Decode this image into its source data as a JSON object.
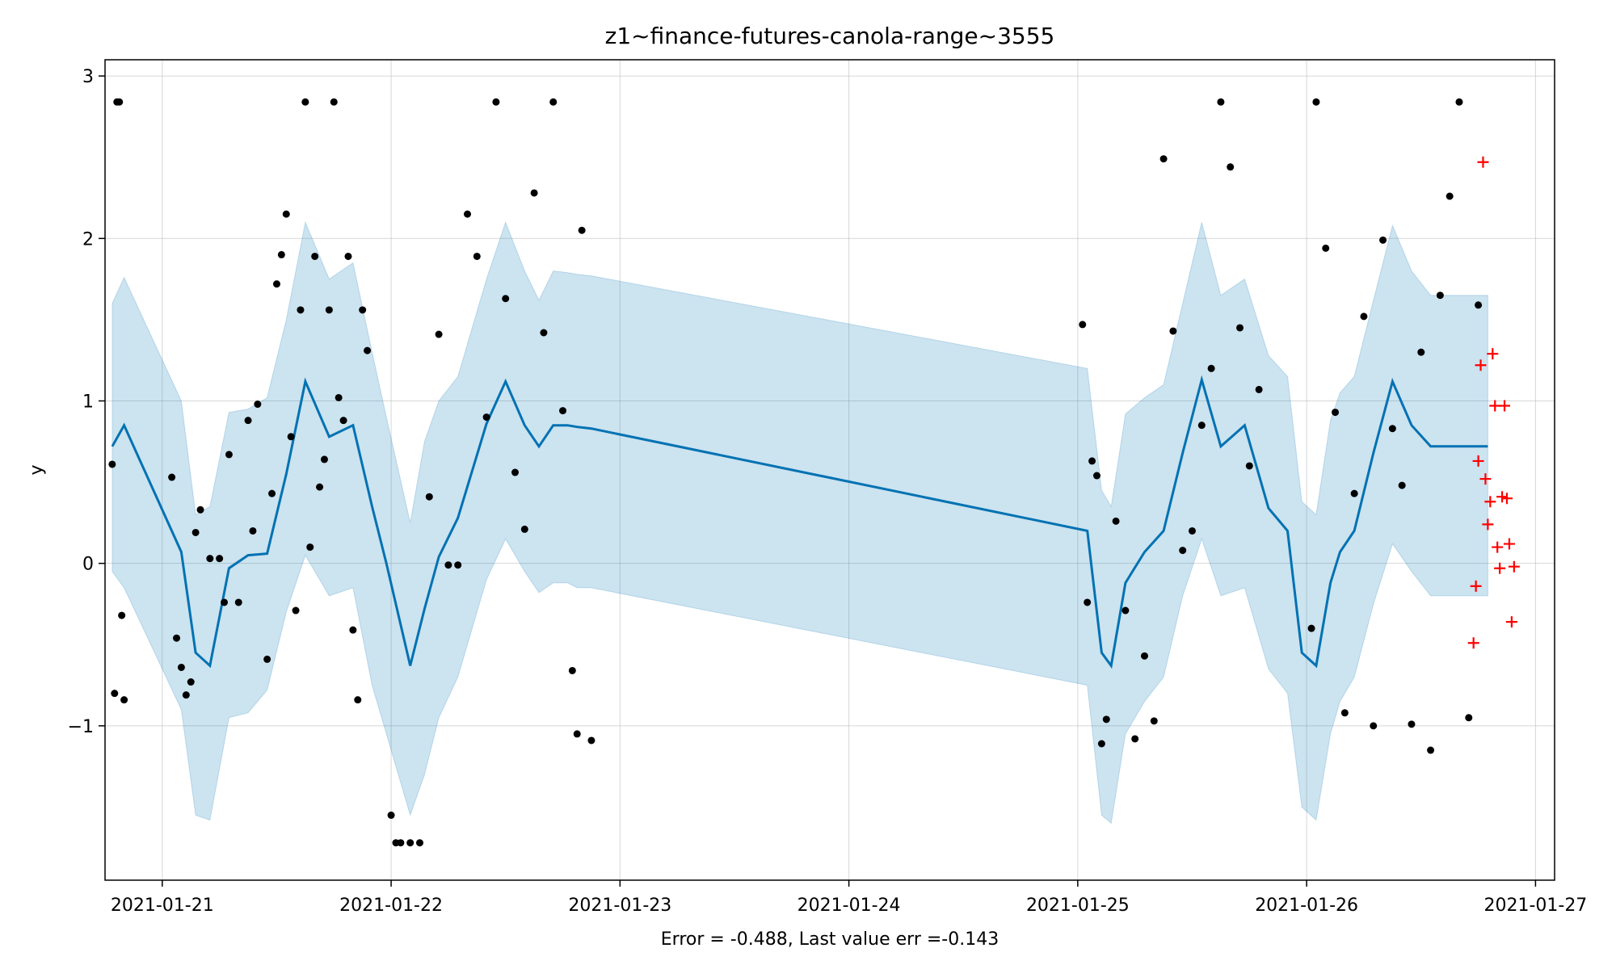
{
  "chart_data": {
    "type": "scatter",
    "title": "z1~finance-futures-canola-range~3555",
    "xlabel": "",
    "ylabel": "y",
    "footer": "Error = -0.488, Last value err =-0.143",
    "grid": true,
    "xlim": [
      "2021-01-20T18:00",
      "2021-01-27T02:00"
    ],
    "ylim": [
      -1.95,
      3.1
    ],
    "xticks": [
      "2021-01-21",
      "2021-01-22",
      "2021-01-23",
      "2021-01-24",
      "2021-01-25",
      "2021-01-26",
      "2021-01-27"
    ],
    "yticks": [
      -1,
      0,
      1,
      2,
      3
    ],
    "ytick_labels": [
      "−1",
      "0",
      "1",
      "2",
      "3"
    ],
    "colors": {
      "forecast_line": "#0072b2",
      "interval_fill": "#0072b2",
      "observed": "#000000",
      "holdout": "#ff0000"
    },
    "forecast": {
      "x": [
        "2021-01-20T18:45",
        "2021-01-20T20:00",
        "2021-01-21T02:00",
        "2021-01-21T03:30",
        "2021-01-21T05:00",
        "2021-01-21T07:00",
        "2021-01-21T09:00",
        "2021-01-21T11:00",
        "2021-01-21T13:00",
        "2021-01-21T15:00",
        "2021-01-21T17:30",
        "2021-01-21T20:00",
        "2021-01-21T22:00",
        "2021-01-21T23:30",
        "2021-01-22T02:00",
        "2021-01-22T03:30",
        "2021-01-22T05:00",
        "2021-01-22T07:00",
        "2021-01-22T10:00",
        "2021-01-22T12:00",
        "2021-01-22T14:00",
        "2021-01-22T15:30",
        "2021-01-22T17:00",
        "2021-01-22T18:30",
        "2021-01-22T19:30",
        "2021-01-22T21:00",
        "2021-01-25T01:00",
        "2021-01-25T02:30",
        "2021-01-25T03:30",
        "2021-01-25T05:00",
        "2021-01-25T07:00",
        "2021-01-25T09:00",
        "2021-01-25T11:00",
        "2021-01-25T13:00",
        "2021-01-25T15:00",
        "2021-01-25T17:30",
        "2021-01-25T20:00",
        "2021-01-25T22:00",
        "2021-01-25T23:30",
        "2021-01-26T01:00",
        "2021-01-26T02:30",
        "2021-01-26T03:30",
        "2021-01-26T05:00",
        "2021-01-26T07:00",
        "2021-01-26T09:00",
        "2021-01-26T11:00",
        "2021-01-26T13:00",
        "2021-01-26T15:00",
        "2021-01-26T17:30",
        "2021-01-26T19:00"
      ],
      "yhat": [
        0.72,
        0.85,
        0.07,
        -0.55,
        -0.63,
        -0.03,
        0.05,
        0.06,
        0.55,
        1.12,
        0.78,
        0.85,
        0.35,
        0.0,
        -0.63,
        -0.28,
        0.04,
        0.28,
        0.86,
        1.12,
        0.85,
        0.72,
        0.85,
        0.85,
        0.84,
        0.83,
        0.2,
        -0.55,
        -0.63,
        -0.12,
        0.07,
        0.2,
        0.68,
        1.13,
        0.72,
        0.85,
        0.34,
        0.2,
        -0.55,
        -0.63,
        -0.12,
        0.07,
        0.2,
        0.68,
        1.12,
        0.85,
        0.72,
        0.72,
        0.72,
        0.72
      ],
      "lower": [
        -0.05,
        -0.15,
        -0.9,
        -1.55,
        -1.58,
        -0.95,
        -0.92,
        -0.78,
        -0.3,
        0.05,
        -0.2,
        -0.15,
        -0.75,
        -1.05,
        -1.55,
        -1.3,
        -0.95,
        -0.7,
        -0.1,
        0.15,
        -0.05,
        -0.18,
        -0.12,
        -0.12,
        -0.15,
        -0.15,
        -0.75,
        -1.55,
        -1.6,
        -1.05,
        -0.85,
        -0.7,
        -0.2,
        0.15,
        -0.2,
        -0.15,
        -0.65,
        -0.8,
        -1.5,
        -1.58,
        -1.05,
        -0.85,
        -0.7,
        -0.25,
        0.12,
        -0.05,
        -0.2,
        -0.2,
        -0.2,
        -0.2
      ],
      "upper": [
        1.6,
        1.76,
        1.0,
        0.3,
        0.35,
        0.93,
        0.95,
        1.02,
        1.5,
        2.1,
        1.75,
        1.85,
        1.3,
        0.9,
        0.25,
        0.75,
        1.0,
        1.15,
        1.75,
        2.1,
        1.8,
        1.62,
        1.8,
        1.79,
        1.78,
        1.77,
        1.2,
        0.45,
        0.35,
        0.92,
        1.02,
        1.1,
        1.6,
        2.1,
        1.65,
        1.75,
        1.28,
        1.15,
        0.38,
        0.3,
        0.88,
        1.05,
        1.15,
        1.62,
        2.08,
        1.8,
        1.65,
        1.65,
        1.65,
        1.65
      ]
    },
    "observed": {
      "x": [
        "2021-01-20T18:45",
        "2021-01-20T19:00",
        "2021-01-20T19:15",
        "2021-01-20T19:30",
        "2021-01-20T19:45",
        "2021-01-20T20:00",
        "2021-01-21T01:00",
        "2021-01-21T01:30",
        "2021-01-21T02:00",
        "2021-01-21T02:30",
        "2021-01-21T03:00",
        "2021-01-21T03:30",
        "2021-01-21T04:00",
        "2021-01-21T05:00",
        "2021-01-21T06:00",
        "2021-01-21T06:30",
        "2021-01-21T07:00",
        "2021-01-21T08:00",
        "2021-01-21T09:00",
        "2021-01-21T09:30",
        "2021-01-21T10:00",
        "2021-01-21T11:00",
        "2021-01-21T11:30",
        "2021-01-21T12:00",
        "2021-01-21T12:30",
        "2021-01-21T13:00",
        "2021-01-21T13:30",
        "2021-01-21T14:00",
        "2021-01-21T14:30",
        "2021-01-21T15:00",
        "2021-01-21T15:30",
        "2021-01-21T16:00",
        "2021-01-21T16:30",
        "2021-01-21T17:00",
        "2021-01-21T17:30",
        "2021-01-21T18:00",
        "2021-01-21T18:30",
        "2021-01-21T19:00",
        "2021-01-21T19:30",
        "2021-01-21T20:00",
        "2021-01-21T20:30",
        "2021-01-21T21:00",
        "2021-01-21T21:30",
        "2021-01-22T00:00",
        "2021-01-22T00:30",
        "2021-01-22T01:00",
        "2021-01-22T02:00",
        "2021-01-22T03:00",
        "2021-01-22T04:00",
        "2021-01-22T05:00",
        "2021-01-22T06:00",
        "2021-01-22T07:00",
        "2021-01-22T08:00",
        "2021-01-22T09:00",
        "2021-01-22T10:00",
        "2021-01-22T11:00",
        "2021-01-22T12:00",
        "2021-01-22T13:00",
        "2021-01-22T14:00",
        "2021-01-22T15:00",
        "2021-01-22T16:00",
        "2021-01-22T17:00",
        "2021-01-22T18:00",
        "2021-01-22T19:00",
        "2021-01-22T19:30",
        "2021-01-22T20:00",
        "2021-01-22T21:00",
        "2021-01-25T00:30",
        "2021-01-25T01:00",
        "2021-01-25T01:30",
        "2021-01-25T02:00",
        "2021-01-25T02:30",
        "2021-01-25T03:00",
        "2021-01-25T04:00",
        "2021-01-25T05:00",
        "2021-01-25T06:00",
        "2021-01-25T07:00",
        "2021-01-25T08:00",
        "2021-01-25T09:00",
        "2021-01-25T10:00",
        "2021-01-25T11:00",
        "2021-01-25T12:00",
        "2021-01-25T13:00",
        "2021-01-25T14:00",
        "2021-01-25T15:00",
        "2021-01-25T16:00",
        "2021-01-25T17:00",
        "2021-01-25T18:00",
        "2021-01-25T19:00",
        "2021-01-26T00:30",
        "2021-01-26T01:00",
        "2021-01-26T02:00",
        "2021-01-26T03:00",
        "2021-01-26T04:00",
        "2021-01-26T05:00",
        "2021-01-26T06:00",
        "2021-01-26T07:00",
        "2021-01-26T08:00",
        "2021-01-26T09:00",
        "2021-01-26T10:00",
        "2021-01-26T11:00",
        "2021-01-26T12:00",
        "2021-01-26T13:00",
        "2021-01-26T14:00",
        "2021-01-26T15:00",
        "2021-01-26T16:00",
        "2021-01-26T17:00",
        "2021-01-26T18:00"
      ],
      "y": [
        0.61,
        -0.8,
        2.84,
        2.84,
        -0.32,
        -0.84,
        0.53,
        -0.46,
        -0.64,
        -0.81,
        -0.73,
        0.19,
        0.33,
        0.03,
        0.03,
        -0.24,
        0.67,
        -0.24,
        0.88,
        0.2,
        0.98,
        -0.59,
        0.43,
        1.72,
        1.9,
        2.15,
        0.78,
        -0.29,
        1.56,
        2.84,
        0.1,
        1.89,
        0.47,
        0.64,
        1.56,
        2.84,
        1.02,
        0.88,
        1.89,
        -0.41,
        -0.84,
        1.56,
        1.31,
        -1.55,
        -1.72,
        -1.72,
        -1.72,
        -1.72,
        0.41,
        1.41,
        -0.01,
        -0.01,
        2.15,
        1.89,
        0.9,
        2.84,
        1.63,
        0.56,
        0.21,
        2.28,
        1.42,
        2.84,
        0.94,
        -0.66,
        -1.05,
        2.05,
        -1.09,
        1.47,
        -0.24,
        0.63,
        0.54,
        -1.11,
        -0.96,
        0.26,
        -0.29,
        -1.08,
        -0.57,
        -0.97,
        2.49,
        1.43,
        0.08,
        0.2,
        0.85,
        1.2,
        2.84,
        2.44,
        1.45,
        0.6,
        1.07,
        -0.4,
        2.84,
        1.94,
        0.93,
        -0.92,
        0.43,
        1.52,
        -1.0,
        1.99,
        0.83,
        0.48,
        -0.99,
        1.3,
        -1.15,
        1.65,
        2.26,
        2.84,
        -0.95,
        1.59
      ]
    },
    "holdout": {
      "x": [
        "2021-01-26T17:30",
        "2021-01-26T17:45",
        "2021-01-26T18:00",
        "2021-01-26T18:15",
        "2021-01-26T18:30",
        "2021-01-26T18:45",
        "2021-01-26T19:00",
        "2021-01-26T19:15",
        "2021-01-26T19:30",
        "2021-01-26T19:45",
        "2021-01-26T20:00",
        "2021-01-26T20:15",
        "2021-01-26T20:30",
        "2021-01-26T20:45",
        "2021-01-26T21:00",
        "2021-01-26T21:15",
        "2021-01-26T21:30",
        "2021-01-26T21:45"
      ],
      "y": [
        -0.49,
        -0.14,
        0.63,
        1.22,
        2.47,
        0.52,
        0.24,
        0.38,
        1.29,
        0.97,
        0.1,
        -0.03,
        0.41,
        0.97,
        0.4,
        0.12,
        -0.36,
        -0.02
      ]
    }
  }
}
